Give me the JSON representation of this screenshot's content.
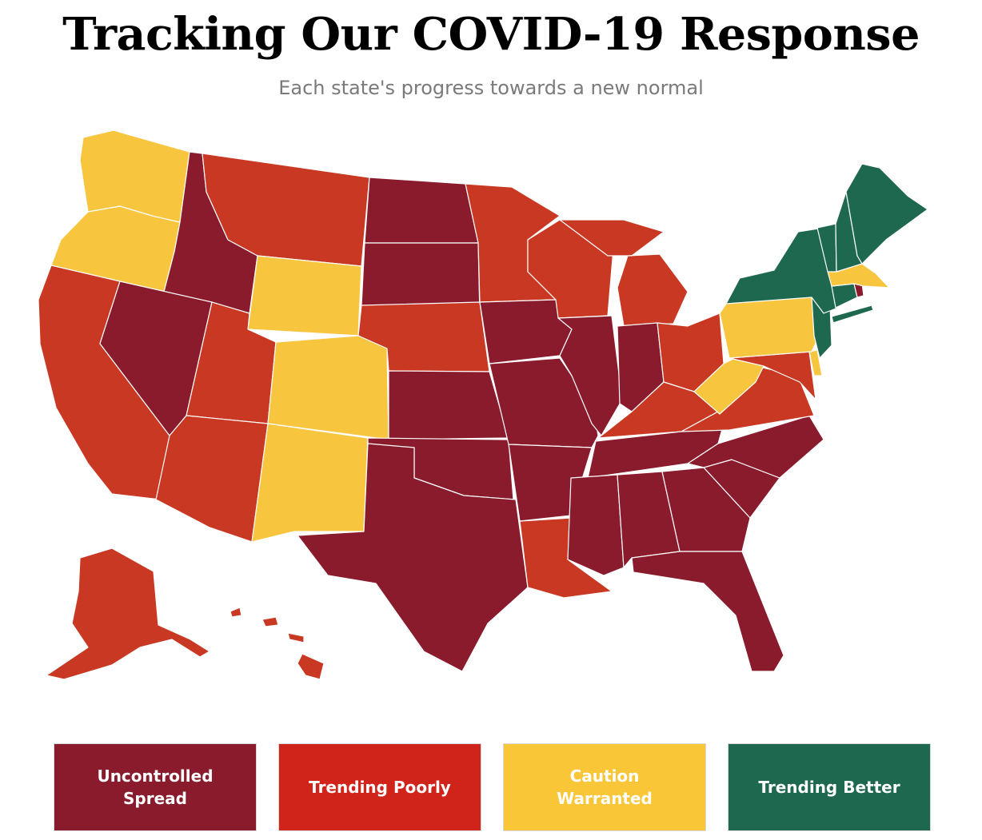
{
  "header": {
    "title": "Tracking Our COVID-19 Response",
    "subtitle": "Each state's progress towards a new normal"
  },
  "colors": {
    "uncontrolled_spread": "#8a1b2c",
    "trending_poorly": "#c93822",
    "caution_warranted": "#f8c53e",
    "trending_better": "#1e6850",
    "legend_trending_poorly": "#d0241b",
    "legend_caution_warranted": "#f9c637"
  },
  "legend": [
    {
      "key": "uncontrolled_spread",
      "label": "Uncontrolled Spread"
    },
    {
      "key": "trending_poorly",
      "label": "Trending Poorly"
    },
    {
      "key": "caution_warranted",
      "label": "Caution Warranted"
    },
    {
      "key": "trending_better",
      "label": "Trending Better"
    }
  ],
  "states": [
    {
      "id": "WA",
      "status": "caution_warranted"
    },
    {
      "id": "OR",
      "status": "caution_warranted"
    },
    {
      "id": "CA",
      "status": "trending_poorly"
    },
    {
      "id": "ID",
      "status": "uncontrolled_spread"
    },
    {
      "id": "NV",
      "status": "uncontrolled_spread"
    },
    {
      "id": "MT",
      "status": "trending_poorly"
    },
    {
      "id": "WY",
      "status": "caution_warranted"
    },
    {
      "id": "UT",
      "status": "trending_poorly"
    },
    {
      "id": "AZ",
      "status": "trending_poorly"
    },
    {
      "id": "CO",
      "status": "caution_warranted"
    },
    {
      "id": "NM",
      "status": "caution_warranted"
    },
    {
      "id": "ND",
      "status": "uncontrolled_spread"
    },
    {
      "id": "SD",
      "status": "uncontrolled_spread"
    },
    {
      "id": "NE",
      "status": "trending_poorly"
    },
    {
      "id": "KS",
      "status": "uncontrolled_spread"
    },
    {
      "id": "OK",
      "status": "uncontrolled_spread"
    },
    {
      "id": "TX",
      "status": "uncontrolled_spread"
    },
    {
      "id": "MN",
      "status": "trending_poorly"
    },
    {
      "id": "IA",
      "status": "uncontrolled_spread"
    },
    {
      "id": "MO",
      "status": "uncontrolled_spread"
    },
    {
      "id": "AR",
      "status": "uncontrolled_spread"
    },
    {
      "id": "LA",
      "status": "trending_poorly"
    },
    {
      "id": "WI",
      "status": "trending_poorly"
    },
    {
      "id": "IL",
      "status": "uncontrolled_spread"
    },
    {
      "id": "MI",
      "status": "trending_poorly"
    },
    {
      "id": "IN",
      "status": "uncontrolled_spread"
    },
    {
      "id": "OH",
      "status": "trending_poorly"
    },
    {
      "id": "KY",
      "status": "trending_poorly"
    },
    {
      "id": "TN",
      "status": "uncontrolled_spread"
    },
    {
      "id": "MS",
      "status": "uncontrolled_spread"
    },
    {
      "id": "AL",
      "status": "uncontrolled_spread"
    },
    {
      "id": "GA",
      "status": "uncontrolled_spread"
    },
    {
      "id": "FL",
      "status": "uncontrolled_spread"
    },
    {
      "id": "SC",
      "status": "uncontrolled_spread"
    },
    {
      "id": "NC",
      "status": "uncontrolled_spread"
    },
    {
      "id": "VA",
      "status": "trending_poorly"
    },
    {
      "id": "WV",
      "status": "caution_warranted"
    },
    {
      "id": "PA",
      "status": "caution_warranted"
    },
    {
      "id": "MD",
      "status": "trending_poorly"
    },
    {
      "id": "DE",
      "status": "caution_warranted"
    },
    {
      "id": "NJ",
      "status": "trending_better"
    },
    {
      "id": "NY",
      "status": "trending_better"
    },
    {
      "id": "CT",
      "status": "trending_better"
    },
    {
      "id": "RI",
      "status": "uncontrolled_spread"
    },
    {
      "id": "MA",
      "status": "caution_warranted"
    },
    {
      "id": "VT",
      "status": "trending_better"
    },
    {
      "id": "NH",
      "status": "trending_better"
    },
    {
      "id": "ME",
      "status": "trending_better"
    },
    {
      "id": "AK",
      "status": "trending_poorly"
    },
    {
      "id": "HI",
      "status": "trending_poorly"
    }
  ]
}
